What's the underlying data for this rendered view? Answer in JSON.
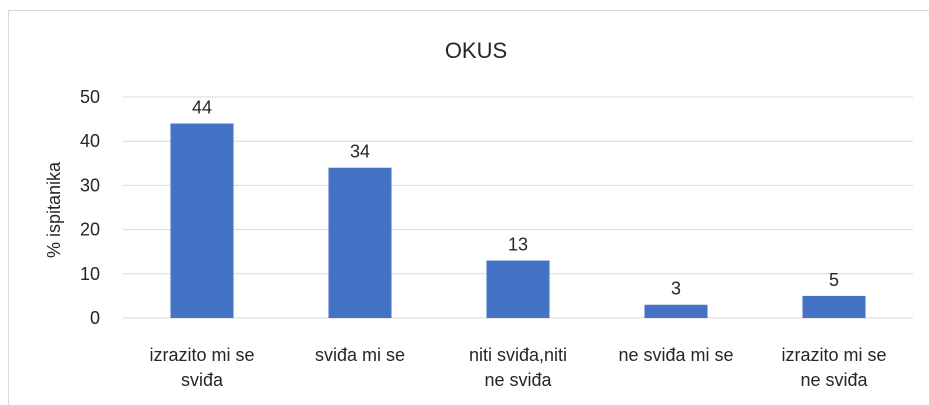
{
  "chart_data": {
    "type": "bar",
    "title": "OKUS",
    "y_label": "% ispitanika",
    "categories": [
      "izrazito mi se\nsviđa",
      "sviđa mi se",
      "niti sviđa,niti\nne sviđa",
      "ne sviđa mi se",
      "izrazito mi se\nne sviđa"
    ],
    "values": [
      44,
      34,
      13,
      3,
      5
    ],
    "color": "#4472c4",
    "ylim": [
      0,
      50
    ],
    "yticks": [
      0,
      10,
      20,
      30,
      40,
      50
    ],
    "grid": true
  }
}
